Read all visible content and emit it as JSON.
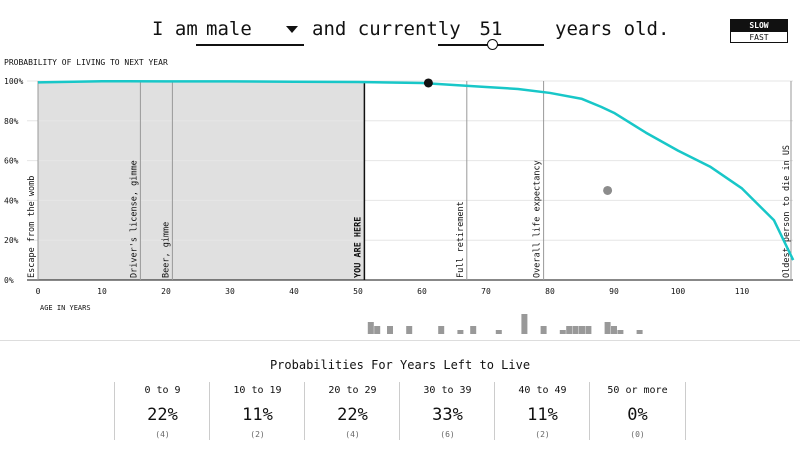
{
  "header": {
    "i_am": "I am",
    "sex_value": "male",
    "and_currently": "and currently",
    "age_value": "51",
    "years_old": "years old.",
    "age_slider": {
      "value": 51,
      "min": 0,
      "max": 100
    }
  },
  "speed": {
    "slow_label": "SLOW",
    "fast_label": "FAST",
    "selected": "slow"
  },
  "colors": {
    "curve": "#18c7c8",
    "shade": "#e0e0e0",
    "marker": "#111111",
    "hist": "#999999",
    "projection": "#8c8c8c"
  },
  "chart_data": {
    "type": "line",
    "title": "PROBABILITY OF LIVING TO NEXT YEAR",
    "xlabel": "AGE IN YEARS",
    "ylabel": "",
    "xlim": [
      -1,
      118
    ],
    "ylim": [
      0,
      100
    ],
    "x_ticks": [
      0,
      10,
      20,
      30,
      40,
      50,
      60,
      70,
      80,
      90,
      100,
      110
    ],
    "y_ticks": [
      0,
      20,
      40,
      60,
      80,
      100
    ],
    "y_tick_labels": [
      "0%",
      "20%",
      "40%",
      "60%",
      "80%",
      "100%"
    ],
    "grid": true,
    "series": [
      {
        "x": [
          0,
          10,
          20,
          30,
          40,
          50,
          60,
          65,
          70,
          75,
          80,
          85,
          88,
          90,
          95,
          100,
          105,
          110,
          115,
          118
        ],
        "y": [
          99.3,
          99.9,
          99.8,
          99.8,
          99.6,
          99.5,
          99.0,
          98.0,
          97.0,
          96.0,
          94.0,
          91.0,
          87.0,
          84.0,
          74.0,
          65.0,
          57.0,
          46.0,
          30.0,
          10.0
        ]
      }
    ],
    "shaded_range": [
      0,
      51
    ],
    "current_marker": {
      "x": 61,
      "y": 99
    },
    "projection_marker": {
      "x": 89,
      "y": 45
    },
    "annotations": [
      {
        "x": 0,
        "label": "Escape from the womb"
      },
      {
        "x": 16,
        "label": "Driver's license, gimme"
      },
      {
        "x": 21,
        "label": "Beer, gimme"
      },
      {
        "x": 51,
        "label": "YOU ARE HERE"
      },
      {
        "x": 67,
        "label": "Full retirement"
      },
      {
        "x": 79,
        "label": "Overall life expectancy"
      },
      {
        "x": 118,
        "label": "Oldest person to die in US"
      }
    ],
    "histogram": {
      "ages": [
        52,
        53,
        55,
        58,
        63,
        66,
        68,
        72,
        76,
        79,
        82,
        83,
        84,
        85,
        86,
        89,
        90,
        91,
        94
      ],
      "counts": [
        3,
        2,
        2,
        2,
        2,
        1,
        2,
        1,
        5,
        2,
        1,
        2,
        2,
        2,
        2,
        3,
        2,
        1,
        1
      ]
    }
  },
  "years_table": {
    "title": "Probabilities For Years Left to Live",
    "cells": [
      {
        "range": "0 to 9",
        "pct": "22%",
        "count": "(4)"
      },
      {
        "range": "10 to 19",
        "pct": "11%",
        "count": "(2)"
      },
      {
        "range": "20 to 29",
        "pct": "22%",
        "count": "(4)"
      },
      {
        "range": "30 to 39",
        "pct": "33%",
        "count": "(6)"
      },
      {
        "range": "40 to 49",
        "pct": "11%",
        "count": "(2)"
      },
      {
        "range": "50 or more",
        "pct": "0%",
        "count": "(0)"
      }
    ]
  }
}
